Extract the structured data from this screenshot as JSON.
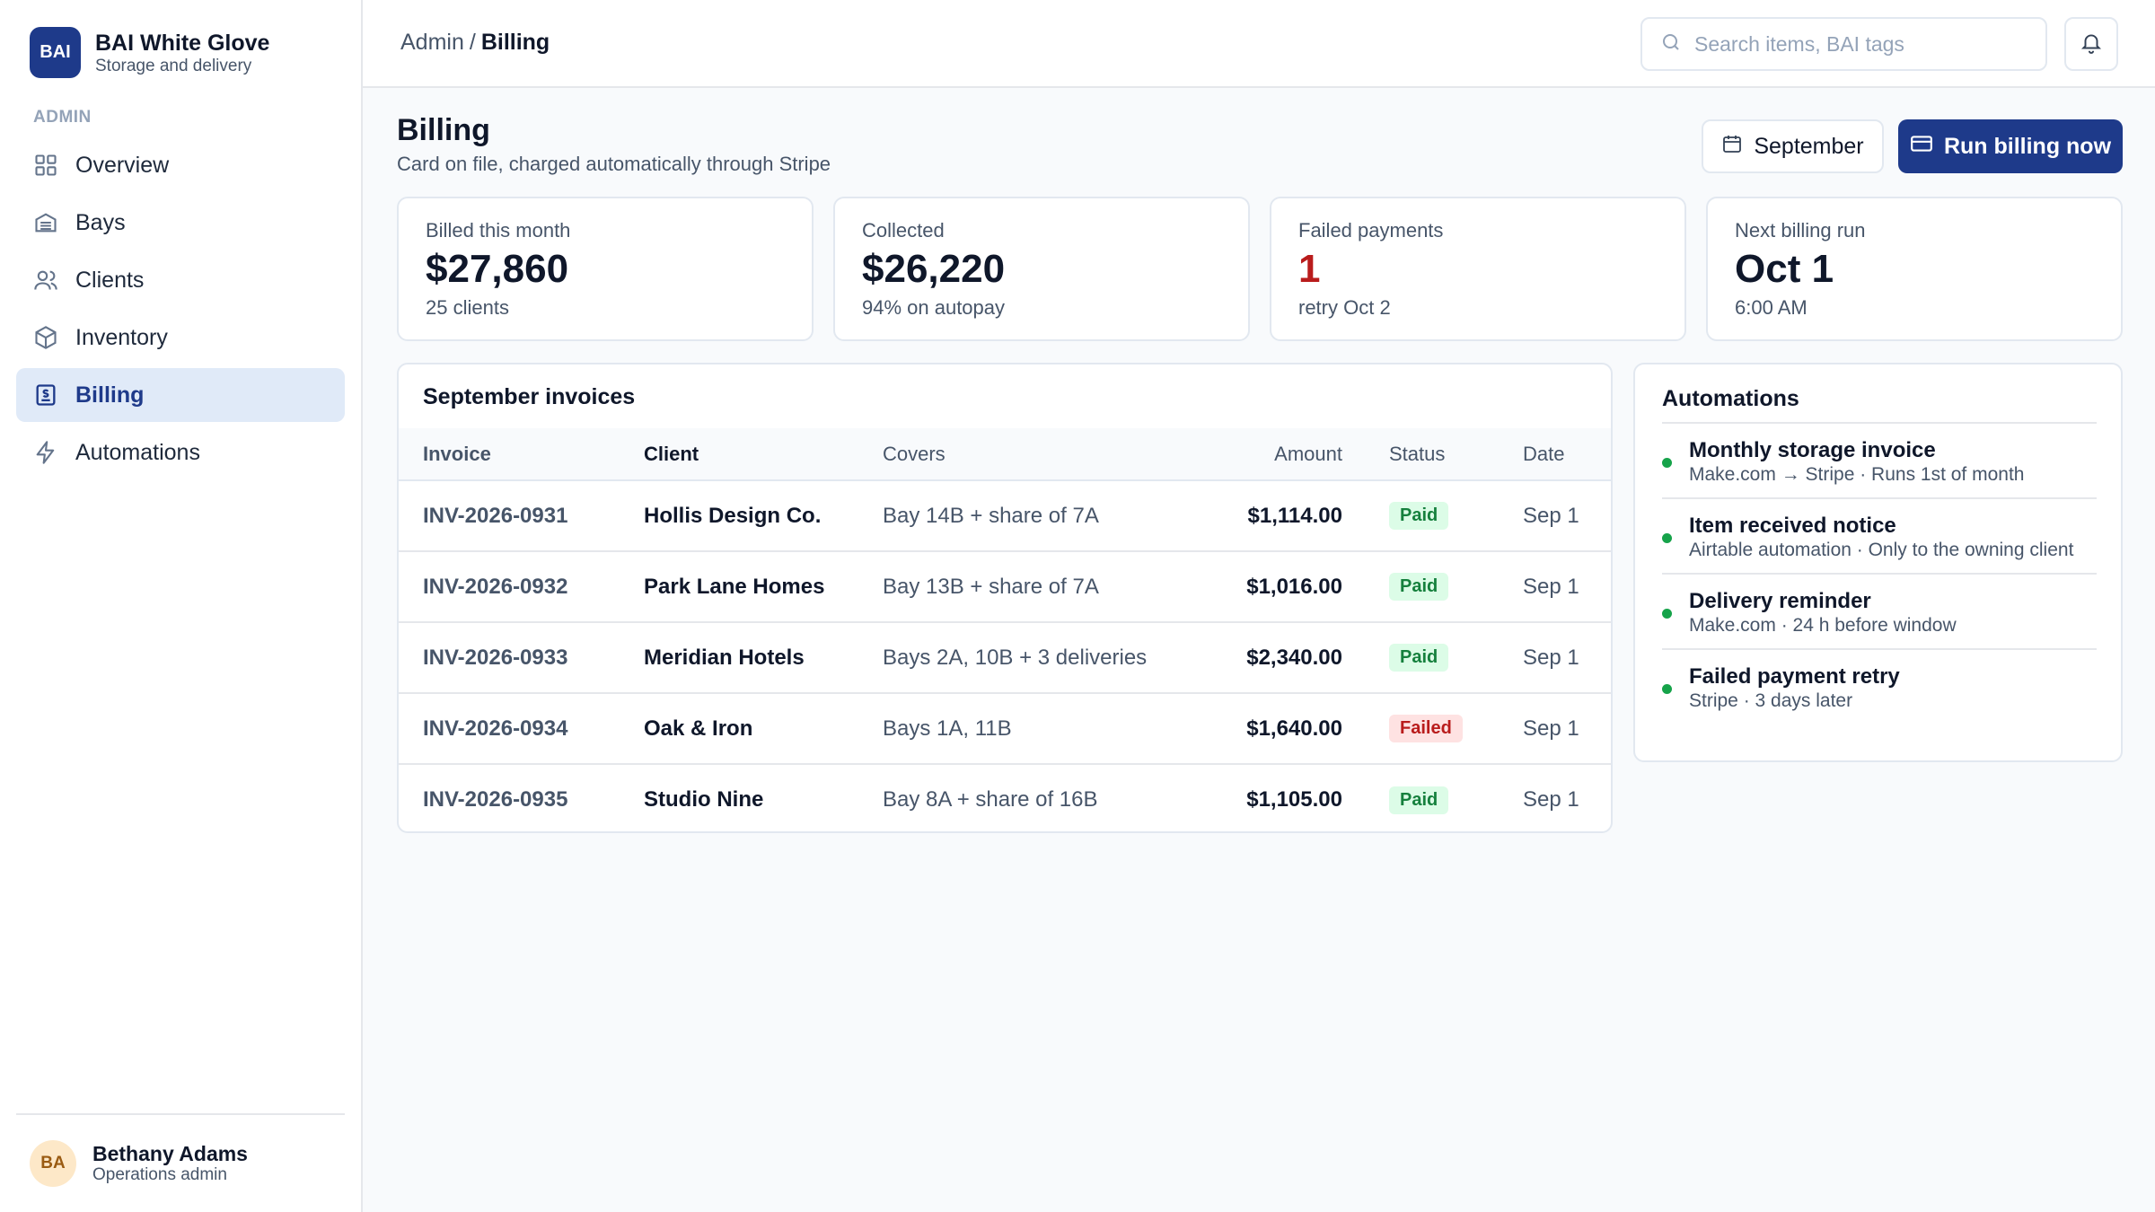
{
  "brand": {
    "logo": "BAI",
    "name": "BAI White Glove",
    "subtitle": "Storage and delivery"
  },
  "sidebar": {
    "section_label": "ADMIN",
    "items": [
      {
        "label": "Overview",
        "icon": "grid-icon",
        "active": false
      },
      {
        "label": "Bays",
        "icon": "warehouse-icon",
        "active": false
      },
      {
        "label": "Clients",
        "icon": "users-icon",
        "active": false
      },
      {
        "label": "Inventory",
        "icon": "box-icon",
        "active": false
      },
      {
        "label": "Billing",
        "icon": "receipt-icon",
        "active": true
      },
      {
        "label": "Automations",
        "icon": "lightning-icon",
        "active": false
      }
    ],
    "user": {
      "initials": "BA",
      "name": "Bethany Adams",
      "role": "Operations admin"
    }
  },
  "topbar": {
    "breadcrumb": {
      "parent": "Admin",
      "separator": "/",
      "current": "Billing"
    },
    "search": {
      "placeholder": "Search items, BAI tags",
      "value": ""
    }
  },
  "header": {
    "title": "Billing",
    "subtitle": "Card on file, charged automatically through Stripe",
    "month_button": "September",
    "run_button": "Run billing now"
  },
  "kpis": [
    {
      "label": "Billed this month",
      "value": "$27,860",
      "sub": "25 clients"
    },
    {
      "label": "Collected",
      "value": "$26,220",
      "sub": "94% on autopay"
    },
    {
      "label": "Failed payments",
      "value": "1",
      "sub": "retry Oct 2"
    },
    {
      "label": "Next billing run",
      "value": "Oct 1",
      "sub": "6:00 AM"
    }
  ],
  "invoices": {
    "title": "September invoices",
    "columns": [
      "Invoice",
      "Client",
      "Covers",
      "Amount",
      "Status",
      "Date"
    ],
    "rows": [
      {
        "invoice": "INV-2026-0931",
        "client": "Hollis Design Co.",
        "covers": "Bay 14B + share of 7A",
        "amount": "$1,114.00",
        "status": "Paid",
        "date": "Sep 1"
      },
      {
        "invoice": "INV-2026-0932",
        "client": "Park Lane Homes",
        "covers": "Bay 13B + share of 7A",
        "amount": "$1,016.00",
        "status": "Paid",
        "date": "Sep 1"
      },
      {
        "invoice": "INV-2026-0933",
        "client": "Meridian Hotels",
        "covers": "Bays 2A, 10B + 3 deliveries",
        "amount": "$2,340.00",
        "status": "Paid",
        "date": "Sep 1"
      },
      {
        "invoice": "INV-2026-0934",
        "client": "Oak & Iron",
        "covers": "Bays 1A, 11B",
        "amount": "$1,640.00",
        "status": "Failed",
        "date": "Sep 1"
      },
      {
        "invoice": "INV-2026-0935",
        "client": "Studio Nine",
        "covers": "Bay 8A + share of 16B",
        "amount": "$1,105.00",
        "status": "Paid",
        "date": "Sep 1"
      }
    ]
  },
  "automations": {
    "title": "Automations",
    "items": [
      {
        "name": "Monthly storage invoice",
        "desc": "Make.com → Stripe · Runs 1st of month"
      },
      {
        "name": "Item received notice",
        "desc": "Airtable automation · Only to the owning client"
      },
      {
        "name": "Delivery reminder",
        "desc": "Make.com · 24 h before window"
      },
      {
        "name": "Failed payment retry",
        "desc": "Stripe · 3 days later"
      }
    ]
  },
  "colors": {
    "brand": "#1e3a8a",
    "active_bg": "#e0eaf8",
    "paid": "#15803d",
    "failed": "#b91c1c",
    "status_dot": "#16a34a"
  }
}
